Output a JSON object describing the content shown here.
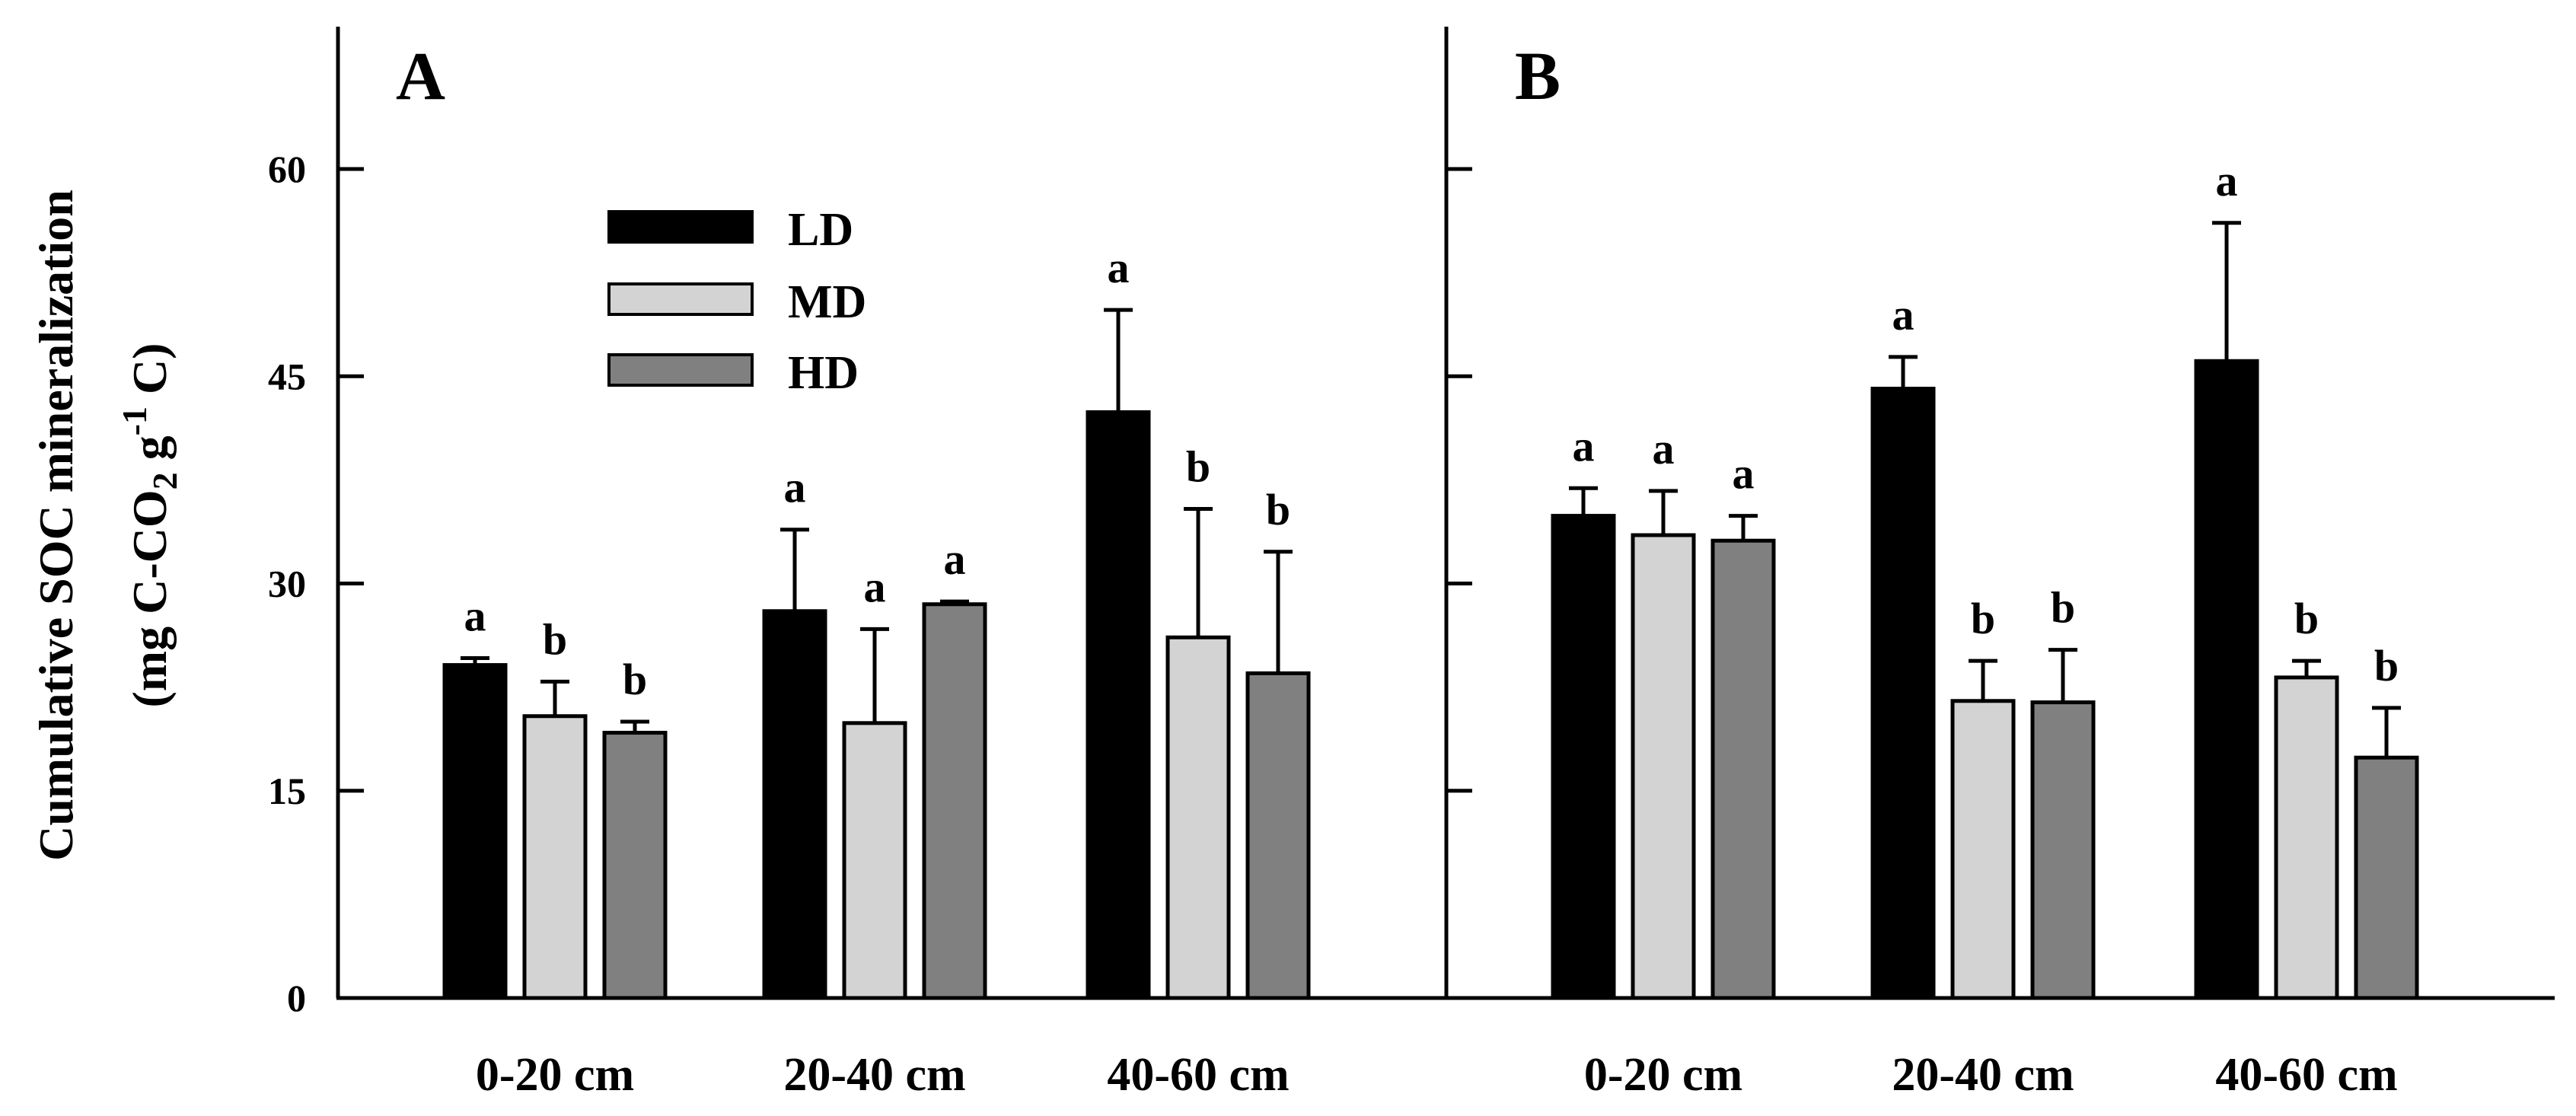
{
  "chart_data": {
    "type": "bar",
    "ylabel_line1": "Cumulative SOC mineralization",
    "ylabel_line2_parts": [
      "(mg C-CO",
      "2",
      " g",
      "-1",
      " C)"
    ],
    "ylim": [
      0,
      70
    ],
    "yticks": [
      0,
      15,
      30,
      45,
      60
    ],
    "ytick_labels": [
      "0",
      "15",
      "30",
      "45",
      "60"
    ],
    "categories": [
      "0-20 cm",
      "20-40 cm",
      "40-60 cm"
    ],
    "legend": [
      {
        "name": "LD",
        "color": "#000000"
      },
      {
        "name": "MD",
        "color": "#d3d3d3"
      },
      {
        "name": "HD",
        "color": "#808080"
      }
    ],
    "panels": [
      {
        "label": "A",
        "series": [
          {
            "name": "LD",
            "values": [
              24.1,
              28.0,
              42.4
            ],
            "errors": [
              0.5,
              5.9,
              7.4
            ],
            "letters": [
              "a",
              "a",
              "a"
            ]
          },
          {
            "name": "MD",
            "values": [
              20.4,
              19.9,
              26.1
            ],
            "errors": [
              2.5,
              6.8,
              9.3
            ],
            "letters": [
              "b",
              "a",
              "b"
            ]
          },
          {
            "name": "HD",
            "values": [
              19.2,
              28.5,
              23.5
            ],
            "errors": [
              0.8,
              0.2,
              8.8
            ],
            "letters": [
              "b",
              "a",
              "b"
            ]
          }
        ]
      },
      {
        "label": "B",
        "series": [
          {
            "name": "LD",
            "values": [
              34.9,
              44.1,
              46.1
            ],
            "errors": [
              2.0,
              2.3,
              10.0
            ],
            "letters": [
              "a",
              "a",
              "a"
            ]
          },
          {
            "name": "MD",
            "values": [
              33.5,
              21.5,
              23.2
            ],
            "errors": [
              3.2,
              2.9,
              1.2
            ],
            "letters": [
              "a",
              "b",
              "b"
            ]
          },
          {
            "name": "HD",
            "values": [
              33.1,
              21.4,
              17.4
            ],
            "errors": [
              1.8,
              3.8,
              3.6
            ],
            "letters": [
              "a",
              "b",
              "b"
            ]
          }
        ]
      }
    ]
  }
}
